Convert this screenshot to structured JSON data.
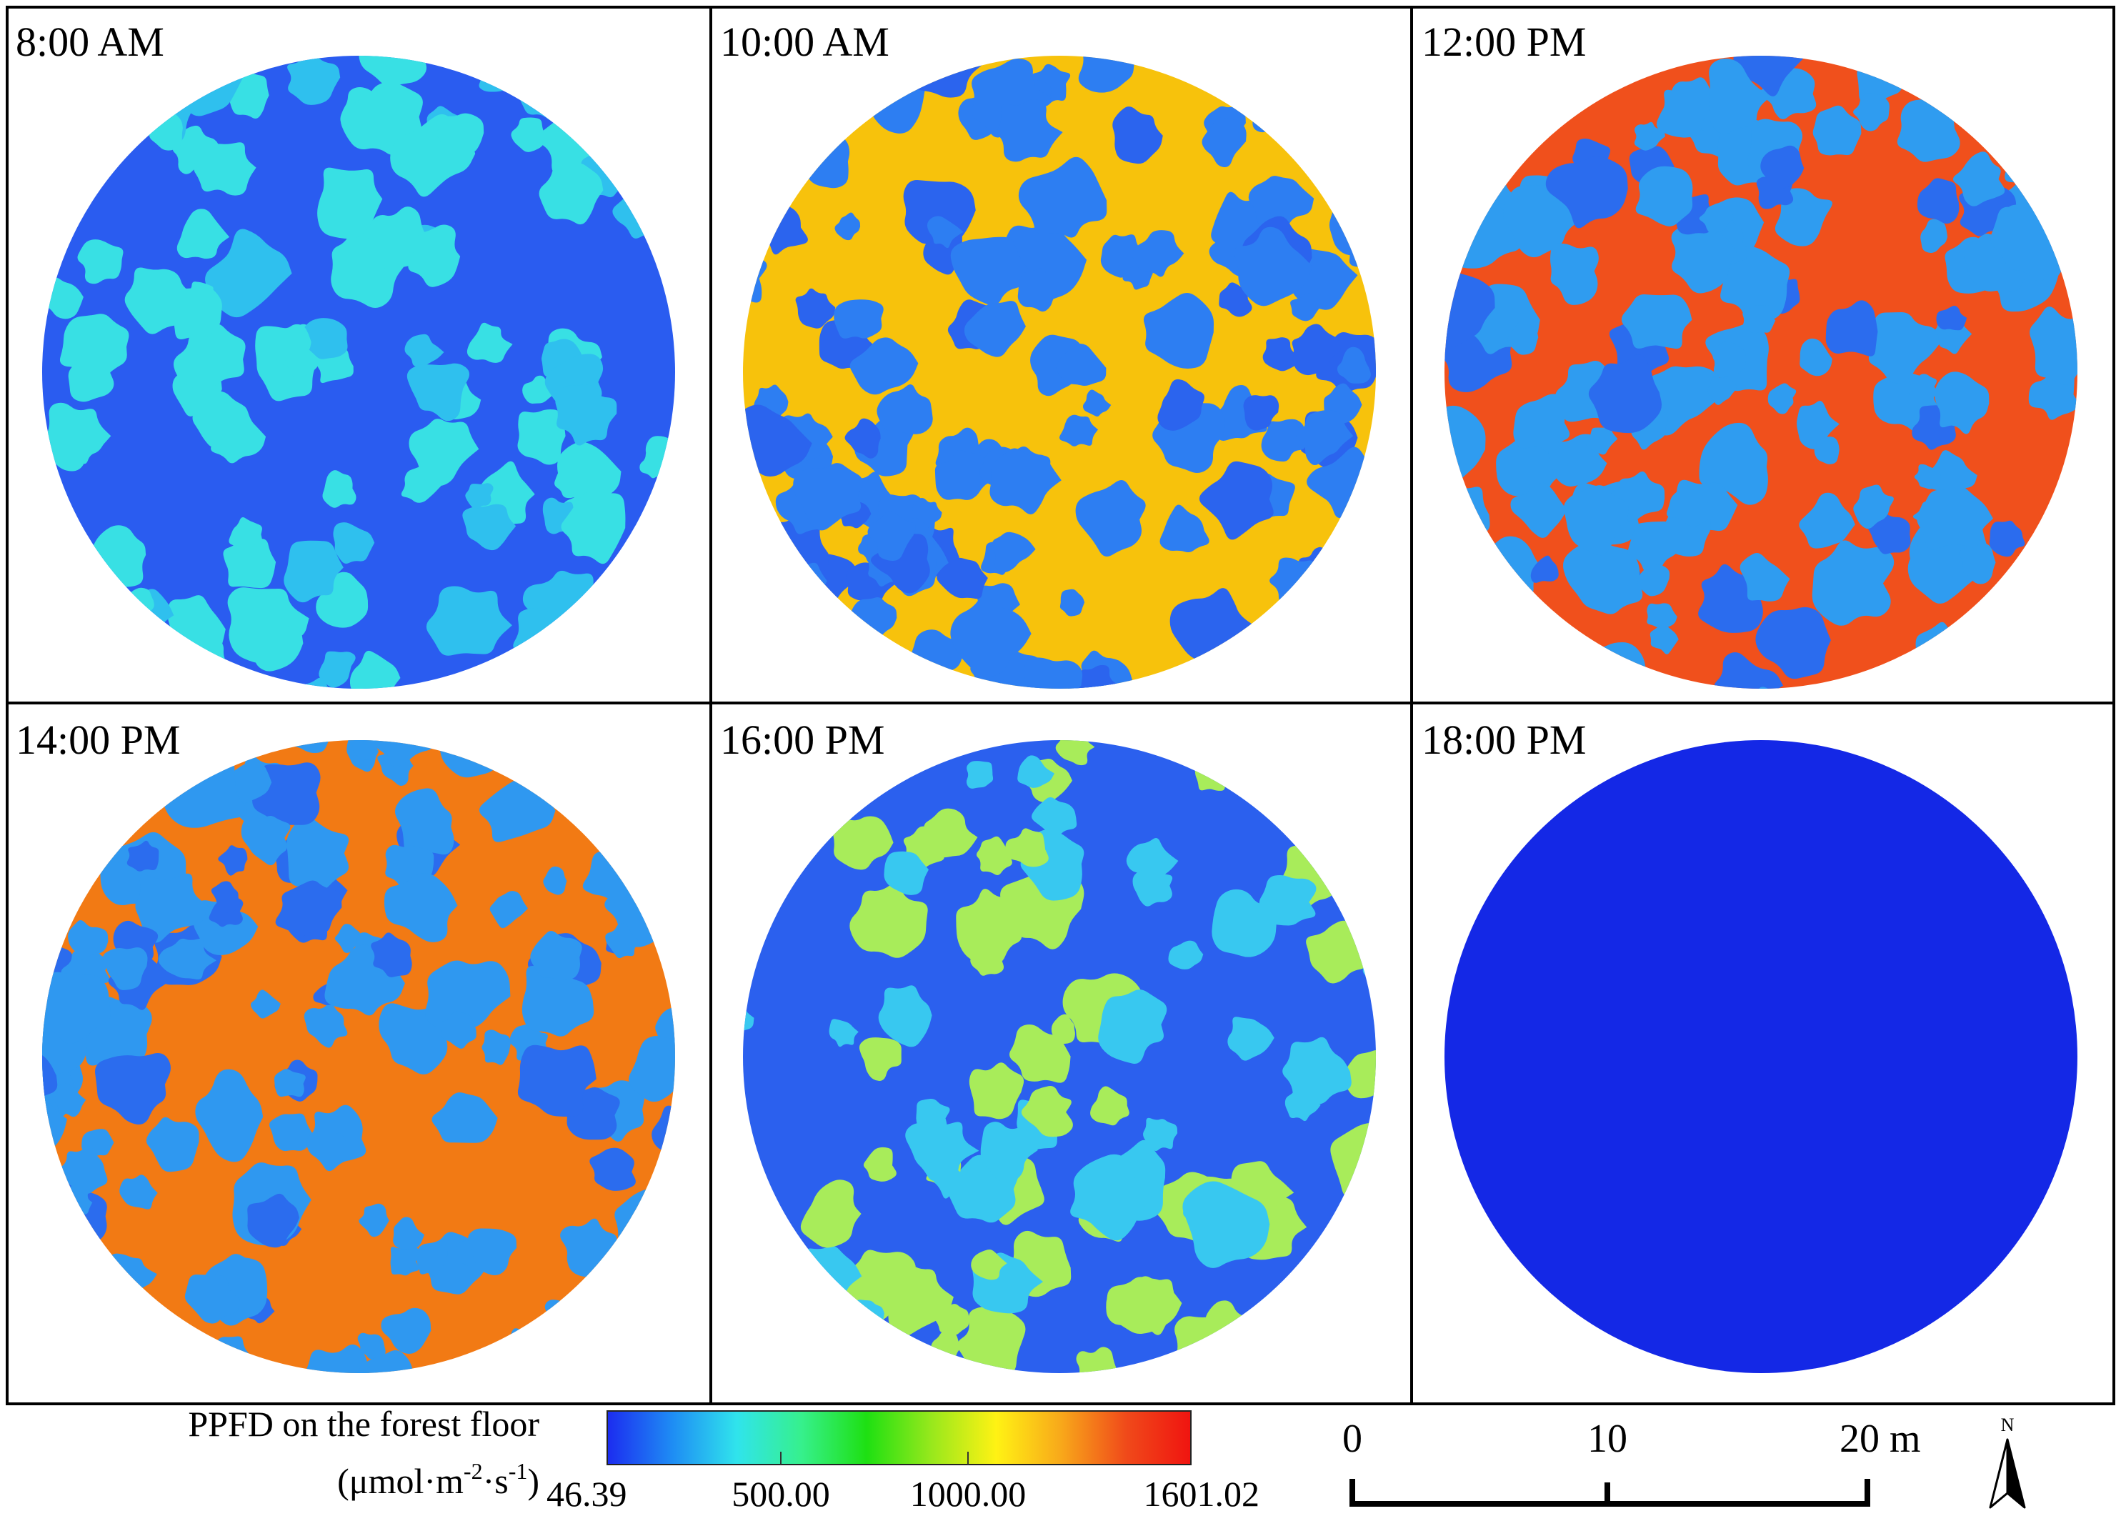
{
  "panels": [
    {
      "label": "8:00 AM",
      "scheme": {
        "background": "#2a5cf0",
        "patches": [
          "#38e0e4",
          "#2fc0ee"
        ],
        "level": 0.35
      }
    },
    {
      "label": "10:00 AM",
      "scheme": {
        "background": "#f7c20c",
        "patches": [
          "#2d7ef2",
          "#2b64ee"
        ],
        "level": 0.55
      }
    },
    {
      "label": "12:00 PM",
      "scheme": {
        "background": "#f0501c",
        "patches": [
          "#2f9cf0",
          "#2b6cee"
        ],
        "level": 0.55
      }
    },
    {
      "label": "14:00 PM",
      "scheme": {
        "background": "#f27a14",
        "patches": [
          "#2f98f0",
          "#2b6cee"
        ],
        "level": 0.55
      }
    },
    {
      "label": "16:00 PM",
      "scheme": {
        "background": "#2b60ee",
        "patches": [
          "#a8ec5a",
          "#38c8f0"
        ],
        "level": 0.3
      }
    },
    {
      "label": "18:00 PM",
      "scheme": {
        "background": "#1428e6",
        "patches": [],
        "level": 0
      }
    }
  ],
  "legend": {
    "title": "PPFD on the forest floor",
    "units_prefix": "(μmol·m",
    "units_exp1": "-2",
    "units_mid": "·s",
    "units_exp2": "-1",
    "units_suffix": ")",
    "min_label": "46.39",
    "ticks": [
      "500.00",
      "1000.00"
    ],
    "max_label": "1601.02",
    "colormap": [
      "#1c2cf0",
      "#1e8cf4",
      "#30e4ec",
      "#36f08c",
      "#1ee012",
      "#98e81c",
      "#fff214",
      "#f8a81a",
      "#f04a1a",
      "#f01410"
    ]
  },
  "scale_bar": {
    "labels": [
      "0",
      "10",
      "20 m"
    ]
  },
  "north_arrow": {
    "label": "N"
  }
}
